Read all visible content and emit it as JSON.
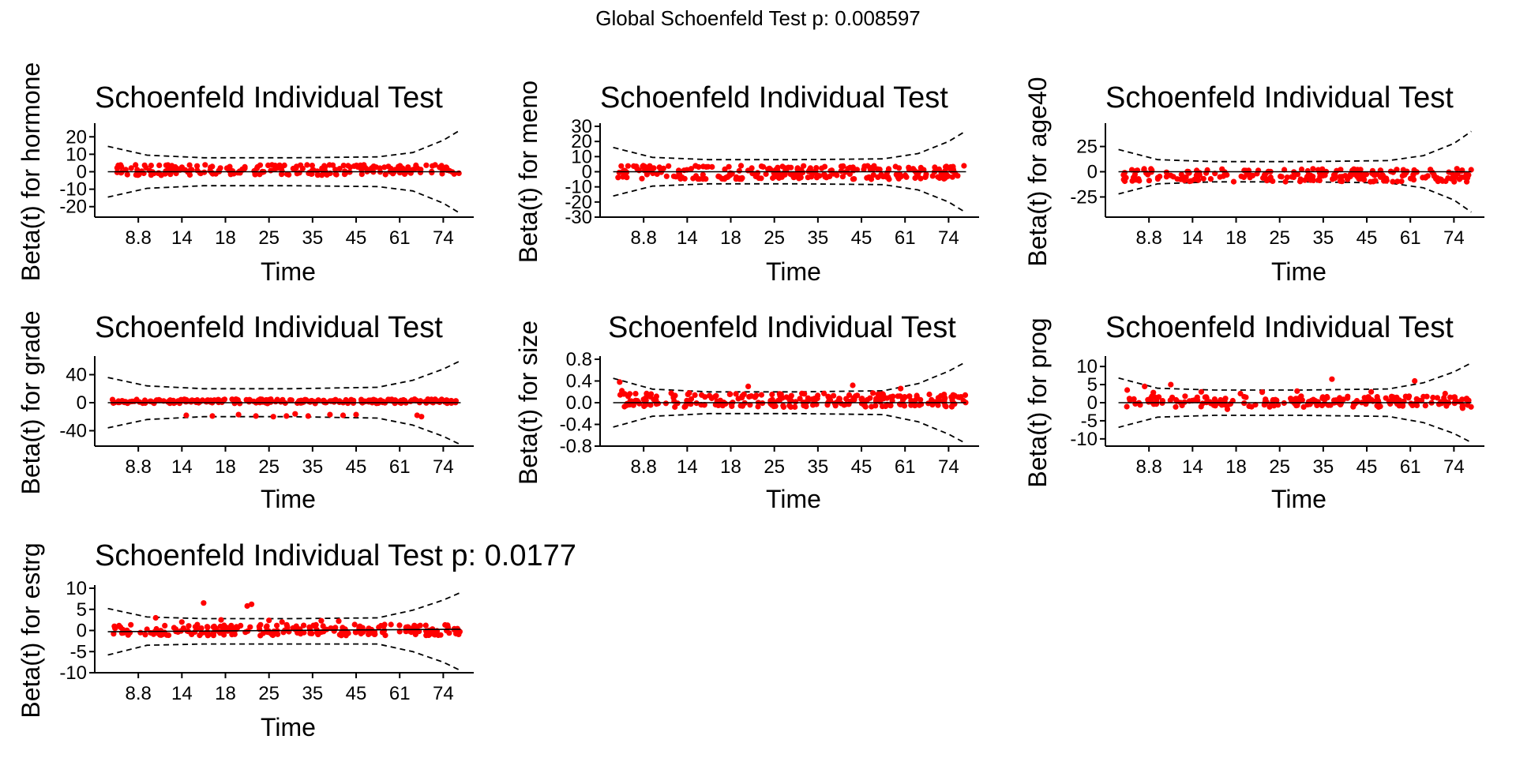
{
  "figure_title": "Global Schoenfeld Test p: 0.008597",
  "colors": {
    "points": "#ff0000",
    "bands": "#000000",
    "axes": "#000000",
    "background": "#ffffff"
  },
  "chart_data": [
    {
      "type": "scatter",
      "id": "hormone",
      "title": "Schoenfeld Individual Test",
      "xlabel": "Time",
      "ylabel": "Beta(t) for hormone",
      "x_tick_labels": [
        "8.8",
        "14",
        "18",
        "25",
        "35",
        "45",
        "61",
        "74"
      ],
      "x_tick_positions": [
        1,
        2,
        3,
        4,
        5,
        6,
        7,
        8
      ],
      "xlim": [
        0,
        8.7
      ],
      "ylim": [
        -26,
        26
      ],
      "y_ticks": [
        -20,
        -10,
        0,
        10,
        20
      ],
      "fit_line": [
        [
          0.3,
          0
        ],
        [
          8.4,
          0
        ]
      ],
      "band_upper": [
        [
          0.3,
          14.5
        ],
        [
          1.2,
          9.5
        ],
        [
          2.5,
          8
        ],
        [
          4.5,
          8
        ],
        [
          6.5,
          8.5
        ],
        [
          7.3,
          11
        ],
        [
          8.0,
          18
        ],
        [
          8.4,
          24
        ]
      ],
      "band_lower": [
        [
          0.3,
          -14.5
        ],
        [
          1.2,
          -9.5
        ],
        [
          2.5,
          -8
        ],
        [
          4.5,
          -8
        ],
        [
          6.5,
          -8.5
        ],
        [
          7.3,
          -11
        ],
        [
          8.0,
          -18
        ],
        [
          8.4,
          -24
        ]
      ],
      "points_spec": {
        "n": 220,
        "x_range": [
          0.4,
          8.4
        ],
        "y_min": -2,
        "y_max": 4,
        "outliers": []
      }
    },
    {
      "type": "scatter",
      "id": "meno",
      "title": "Schoenfeld Individual Test",
      "xlabel": "Time",
      "ylabel": "Beta(t) for meno",
      "x_tick_labels": [
        "8.8",
        "14",
        "18",
        "25",
        "35",
        "45",
        "61",
        "74"
      ],
      "x_tick_positions": [
        1,
        2,
        3,
        4,
        5,
        6,
        7,
        8
      ],
      "xlim": [
        0,
        8.7
      ],
      "ylim": [
        -30,
        30
      ],
      "y_ticks": [
        -30,
        -20,
        -10,
        0,
        10,
        20,
        30
      ],
      "fit_line": [
        [
          0.3,
          0
        ],
        [
          8.4,
          0
        ]
      ],
      "band_upper": [
        [
          0.3,
          16
        ],
        [
          1.2,
          9.5
        ],
        [
          2.5,
          8
        ],
        [
          4.5,
          8
        ],
        [
          6.5,
          8.5
        ],
        [
          7.3,
          12
        ],
        [
          8.0,
          20
        ],
        [
          8.4,
          27
        ]
      ],
      "band_lower": [
        [
          0.3,
          -16
        ],
        [
          1.2,
          -9.5
        ],
        [
          2.5,
          -8
        ],
        [
          4.5,
          -8
        ],
        [
          6.5,
          -8.5
        ],
        [
          7.3,
          -12
        ],
        [
          8.0,
          -20
        ],
        [
          8.4,
          -27
        ]
      ],
      "points_spec": {
        "n": 240,
        "x_range": [
          0.4,
          8.4
        ],
        "y_min": -5,
        "y_max": 4,
        "outliers": []
      }
    },
    {
      "type": "scatter",
      "id": "age40",
      "title": "Schoenfeld Individual Test",
      "xlabel": "Time",
      "ylabel": "Beta(t) for age40",
      "x_tick_labels": [
        "8.8",
        "14",
        "18",
        "25",
        "35",
        "45",
        "61",
        "74"
      ],
      "x_tick_positions": [
        1,
        2,
        3,
        4,
        5,
        6,
        7,
        8
      ],
      "xlim": [
        0,
        8.7
      ],
      "ylim": [
        -45,
        45
      ],
      "y_ticks": [
        -25,
        0,
        25
      ],
      "fit_line": [
        [
          0.3,
          0
        ],
        [
          8.4,
          0
        ]
      ],
      "band_upper": [
        [
          0.3,
          22
        ],
        [
          1.2,
          12
        ],
        [
          2.5,
          10
        ],
        [
          4.5,
          10
        ],
        [
          6.5,
          11
        ],
        [
          7.3,
          16
        ],
        [
          8.0,
          28
        ],
        [
          8.4,
          40
        ]
      ],
      "band_lower": [
        [
          0.3,
          -22
        ],
        [
          1.2,
          -12
        ],
        [
          2.5,
          -10
        ],
        [
          4.5,
          -10
        ],
        [
          6.5,
          -11
        ],
        [
          7.3,
          -16
        ],
        [
          8.0,
          -28
        ],
        [
          8.4,
          -40
        ]
      ],
      "points_spec": {
        "n": 230,
        "x_range": [
          0.4,
          8.4
        ],
        "y_min": -10,
        "y_max": 3,
        "outliers": []
      }
    },
    {
      "type": "scatter",
      "id": "grade",
      "title": "Schoenfeld Individual Test",
      "xlabel": "Time",
      "ylabel": "Beta(t) for grade",
      "x_tick_labels": [
        "8.8",
        "14",
        "18",
        "25",
        "35",
        "45",
        "61",
        "74"
      ],
      "x_tick_positions": [
        1,
        2,
        3,
        4,
        5,
        6,
        7,
        8
      ],
      "xlim": [
        0,
        8.7
      ],
      "ylim": [
        -62,
        62
      ],
      "y_ticks": [
        -40,
        0,
        40
      ],
      "fit_line": [
        [
          0.3,
          0
        ],
        [
          8.4,
          0
        ]
      ],
      "band_upper": [
        [
          0.3,
          36
        ],
        [
          1.2,
          24
        ],
        [
          2.5,
          20
        ],
        [
          4.5,
          20
        ],
        [
          6.5,
          22
        ],
        [
          7.3,
          32
        ],
        [
          8.0,
          48
        ],
        [
          8.4,
          60
        ]
      ],
      "band_lower": [
        [
          0.3,
          -36
        ],
        [
          1.2,
          -24
        ],
        [
          2.5,
          -20
        ],
        [
          4.5,
          -20
        ],
        [
          6.5,
          -22
        ],
        [
          7.3,
          -32
        ],
        [
          8.0,
          -48
        ],
        [
          8.4,
          -60
        ]
      ],
      "points_spec": {
        "n": 230,
        "x_range": [
          0.4,
          8.4
        ],
        "y_min": -1,
        "y_max": 5,
        "outliers": [
          [
            2.1,
            -18
          ],
          [
            2.7,
            -19
          ],
          [
            3.3,
            -17
          ],
          [
            3.7,
            -19
          ],
          [
            4.1,
            -20
          ],
          [
            4.4,
            -19
          ],
          [
            4.6,
            -16
          ],
          [
            4.9,
            -19
          ],
          [
            5.4,
            -17
          ],
          [
            5.7,
            -18
          ],
          [
            6.0,
            -17
          ],
          [
            7.4,
            -18
          ],
          [
            7.5,
            -20
          ]
        ]
      }
    },
    {
      "type": "scatter",
      "id": "size",
      "title": "Schoenfeld Individual Test",
      "xlabel": "Time",
      "ylabel": "Beta(t) for size",
      "x_tick_labels": [
        "8.8",
        "14",
        "18",
        "25",
        "35",
        "45",
        "61",
        "74"
      ],
      "x_tick_positions": [
        1,
        2,
        3,
        4,
        5,
        6,
        7,
        8
      ],
      "xlim": [
        0,
        8.7
      ],
      "ylim": [
        -0.8,
        0.8
      ],
      "y_ticks": [
        -0.8,
        -0.4,
        0.0,
        0.4,
        0.8
      ],
      "y_tick_labels": [
        "-0.8",
        "-0.4",
        "0.0",
        "0.4",
        "0.8"
      ],
      "fit_line": [
        [
          0.3,
          0
        ],
        [
          8.4,
          0
        ]
      ],
      "band_upper": [
        [
          0.3,
          0.45
        ],
        [
          1.2,
          0.25
        ],
        [
          2.5,
          0.2
        ],
        [
          4.5,
          0.2
        ],
        [
          6.5,
          0.22
        ],
        [
          7.3,
          0.35
        ],
        [
          8.0,
          0.58
        ],
        [
          8.4,
          0.75
        ]
      ],
      "band_lower": [
        [
          0.3,
          -0.45
        ],
        [
          1.2,
          -0.25
        ],
        [
          2.5,
          -0.2
        ],
        [
          4.5,
          -0.2
        ],
        [
          6.5,
          -0.22
        ],
        [
          7.3,
          -0.35
        ],
        [
          8.0,
          -0.58
        ],
        [
          8.4,
          -0.75
        ]
      ],
      "points_spec": {
        "n": 250,
        "x_range": [
          0.4,
          8.4
        ],
        "y_min": -0.08,
        "y_max": 0.18,
        "outliers": [
          [
            0.45,
            0.38
          ],
          [
            0.5,
            0.22
          ],
          [
            5.8,
            0.32
          ],
          [
            3.4,
            0.3
          ],
          [
            6.9,
            0.26
          ]
        ]
      }
    },
    {
      "type": "scatter",
      "id": "prog",
      "title": "Schoenfeld Individual Test",
      "xlabel": "Time",
      "ylabel": "Beta(t) for prog",
      "x_tick_labels": [
        "8.8",
        "14",
        "18",
        "25",
        "35",
        "45",
        "61",
        "74"
      ],
      "x_tick_positions": [
        1,
        2,
        3,
        4,
        5,
        6,
        7,
        8
      ],
      "xlim": [
        0,
        8.7
      ],
      "ylim": [
        -12,
        12
      ],
      "y_ticks": [
        -10,
        -5,
        0,
        5,
        10
      ],
      "fit_line": [
        [
          0.3,
          0
        ],
        [
          8.4,
          0
        ]
      ],
      "band_upper": [
        [
          0.3,
          6.8
        ],
        [
          1.2,
          4
        ],
        [
          2.5,
          3.5
        ],
        [
          4.5,
          3.5
        ],
        [
          6.5,
          3.8
        ],
        [
          7.3,
          5.5
        ],
        [
          8.0,
          8.5
        ],
        [
          8.4,
          11
        ]
      ],
      "band_lower": [
        [
          0.3,
          -6.8
        ],
        [
          1.2,
          -4
        ],
        [
          2.5,
          -3.5
        ],
        [
          4.5,
          -3.5
        ],
        [
          6.5,
          -3.8
        ],
        [
          7.3,
          -5.5
        ],
        [
          8.0,
          -8.5
        ],
        [
          8.4,
          -11
        ]
      ],
      "points_spec": {
        "n": 220,
        "x_range": [
          0.4,
          8.4
        ],
        "y_min": -1.2,
        "y_max": 1.8,
        "outliers": [
          [
            0.5,
            3.5
          ],
          [
            0.9,
            4.5
          ],
          [
            1.1,
            2.8
          ],
          [
            1.5,
            5
          ],
          [
            2.2,
            3
          ],
          [
            3.1,
            2.5
          ],
          [
            3.6,
            2.9
          ],
          [
            4.4,
            3.2
          ],
          [
            5.2,
            6.5
          ],
          [
            6.1,
            3
          ],
          [
            7.1,
            6
          ],
          [
            7.8,
            2.5
          ],
          [
            8.2,
            -1.5
          ],
          [
            2.8,
            -1.8
          ]
        ]
      }
    },
    {
      "type": "scatter",
      "id": "estrg",
      "title": "Schoenfeld Individual Test p: 0.0177",
      "xlabel": "Time",
      "ylabel": "Beta(t) for estrg",
      "x_tick_labels": [
        "8.8",
        "14",
        "18",
        "25",
        "35",
        "45",
        "61",
        "74"
      ],
      "x_tick_positions": [
        1,
        2,
        3,
        4,
        5,
        6,
        7,
        8
      ],
      "xlim": [
        0,
        8.7
      ],
      "ylim": [
        -10,
        10
      ],
      "y_ticks": [
        -10,
        -5,
        0,
        5,
        10
      ],
      "fit_line": [
        [
          0.3,
          -0.3
        ],
        [
          8.4,
          0.3
        ]
      ],
      "band_upper": [
        [
          0.3,
          5.2
        ],
        [
          1.2,
          3.2
        ],
        [
          2.5,
          2.8
        ],
        [
          4.5,
          2.8
        ],
        [
          6.5,
          3
        ],
        [
          7.3,
          4.8
        ],
        [
          8.0,
          7.2
        ],
        [
          8.4,
          9
        ]
      ],
      "band_lower": [
        [
          0.3,
          -5.8
        ],
        [
          1.2,
          -3.5
        ],
        [
          2.5,
          -3.2
        ],
        [
          4.5,
          -3.2
        ],
        [
          6.5,
          -3.2
        ],
        [
          7.3,
          -5
        ],
        [
          8.0,
          -7.5
        ],
        [
          8.4,
          -9.5
        ]
      ],
      "points_spec": {
        "n": 220,
        "x_range": [
          0.4,
          8.4
        ],
        "y_min": -1.2,
        "y_max": 1.4,
        "outliers": [
          [
            1.4,
            3
          ],
          [
            2.0,
            2
          ],
          [
            2.5,
            6.5
          ],
          [
            2.9,
            2.5
          ],
          [
            3.5,
            5.8
          ],
          [
            3.6,
            6.2
          ],
          [
            4.0,
            2.4
          ],
          [
            4.3,
            2.0
          ],
          [
            3.8,
            -1.2
          ],
          [
            5.2,
            2.3
          ],
          [
            5.6,
            2.2
          ],
          [
            4.2,
            -0.9
          ],
          [
            6.8,
            1.4
          ],
          [
            7.6,
            1.2
          ]
        ]
      }
    }
  ]
}
